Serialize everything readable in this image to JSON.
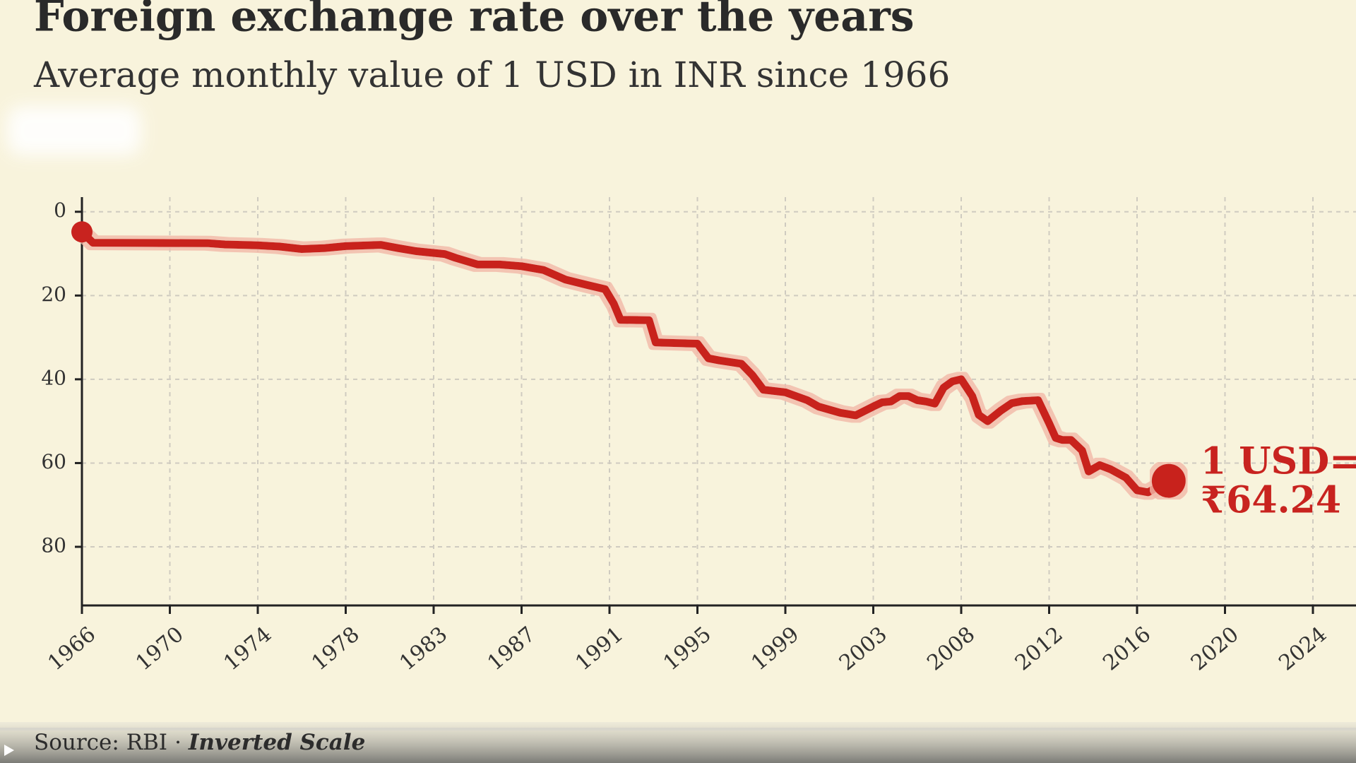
{
  "chart_data": {
    "type": "line",
    "title": "Foreign exchange rate over the years",
    "subtitle": "Average monthly value of 1 USD in INR since 1966",
    "x": [
      1966.0,
      1966.5,
      1971.7,
      1972.5,
      1974.0,
      1975.0,
      1976.0,
      1977.0,
      1978.0,
      1980.0,
      1981.0,
      1982.0,
      1983.5,
      1984.0,
      1985.0,
      1986.0,
      1987.0,
      1988.0,
      1989.0,
      1990.0,
      1990.8,
      1991.2,
      1991.5,
      1992.8,
      1993.1,
      1995.0,
      1995.5,
      1996.0,
      1997.0,
      1997.5,
      1998.0,
      1999.0,
      2000.0,
      2000.5,
      2001.5,
      2002.2,
      2003.0,
      2003.5,
      2004.0,
      2004.5,
      2005.0,
      2005.5,
      2006.0,
      2006.5,
      2007.0,
      2007.5,
      2008.0,
      2008.5,
      2008.8,
      2009.2,
      2009.8,
      2010.3,
      2010.8,
      2011.5,
      2012.0,
      2012.3,
      2012.6,
      2013.0,
      2013.5,
      2013.8,
      2014.3,
      2014.8,
      2015.5,
      2016.0,
      2016.5,
      2017.0,
      2017.44
    ],
    "series": [
      {
        "name": "1 USD in INR",
        "color": "#c8231f",
        "values": [
          4.8,
          7.4,
          7.5,
          7.8,
          8.0,
          8.3,
          8.9,
          8.7,
          8.2,
          7.9,
          8.7,
          9.4,
          10.1,
          11.0,
          12.6,
          12.6,
          13.0,
          13.9,
          16.2,
          17.5,
          18.5,
          22.0,
          25.8,
          25.9,
          31.2,
          31.5,
          35.0,
          35.5,
          36.3,
          39.0,
          42.5,
          43.1,
          45.0,
          46.5,
          48.0,
          48.6,
          46.5,
          45.5,
          45.3,
          44.0,
          44.0,
          45.0,
          45.3,
          45.8,
          42.0,
          40.5,
          40.0,
          44.0,
          48.5,
          50.0,
          47.5,
          45.7,
          45.2,
          45.0,
          50.5,
          54.0,
          54.5,
          54.5,
          57.0,
          62.0,
          60.5,
          61.5,
          63.5,
          66.5,
          67.0,
          65.5,
          64.24
        ]
      }
    ],
    "annotation": [
      "1 USD=",
      "₹64.24"
    ],
    "xlim": [
      1966,
      2026
    ],
    "xticks": [
      1966,
      1970,
      1974,
      1978,
      1983,
      1987,
      1991,
      1995,
      1999,
      2003,
      2008,
      2012,
      2016,
      2020,
      2024
    ],
    "ylim": [
      -3.5,
      94
    ],
    "yticks": [
      0,
      20,
      40,
      60,
      80
    ],
    "y_inverted": true,
    "grid": true,
    "source": "Source: RBI",
    "source_separator": "·",
    "source_note": "Inverted Scale"
  }
}
